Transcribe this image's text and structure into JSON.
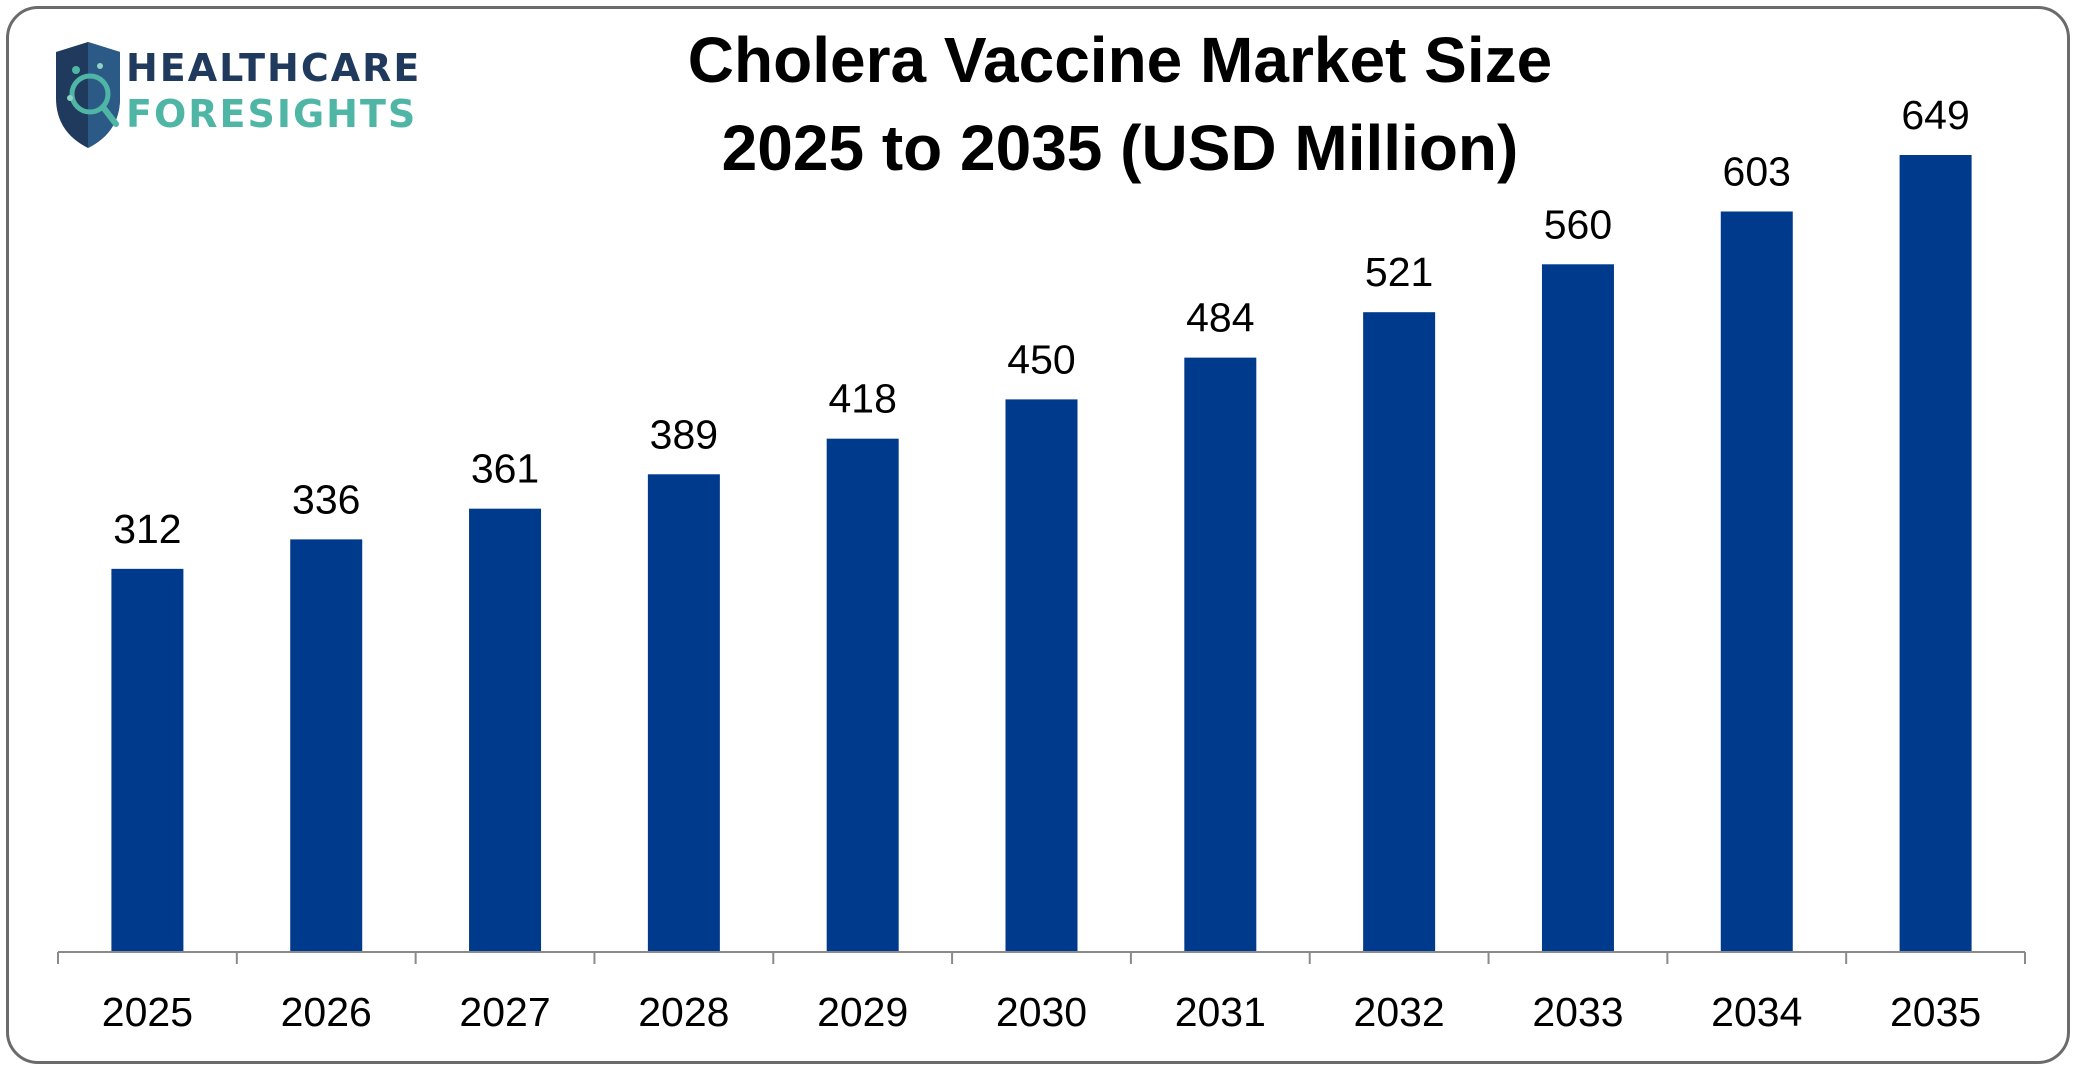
{
  "logo": {
    "line1": "HEALTHCARE",
    "line2": "FORESIGHTS"
  },
  "chart_data": {
    "type": "bar",
    "title": "Cholera Vaccine Market Size",
    "subtitle": "2025 to 2035 (USD Million)",
    "categories": [
      "2025",
      "2026",
      "2027",
      "2028",
      "2029",
      "2030",
      "2031",
      "2032",
      "2033",
      "2034",
      "2035"
    ],
    "values": [
      312,
      336,
      361,
      389,
      418,
      450,
      484,
      521,
      560,
      603,
      649
    ],
    "ylim": [
      0,
      649
    ],
    "grid": false,
    "legend": "none",
    "bar_color": "#003A8C",
    "axis_color": "#8a8a8a"
  }
}
